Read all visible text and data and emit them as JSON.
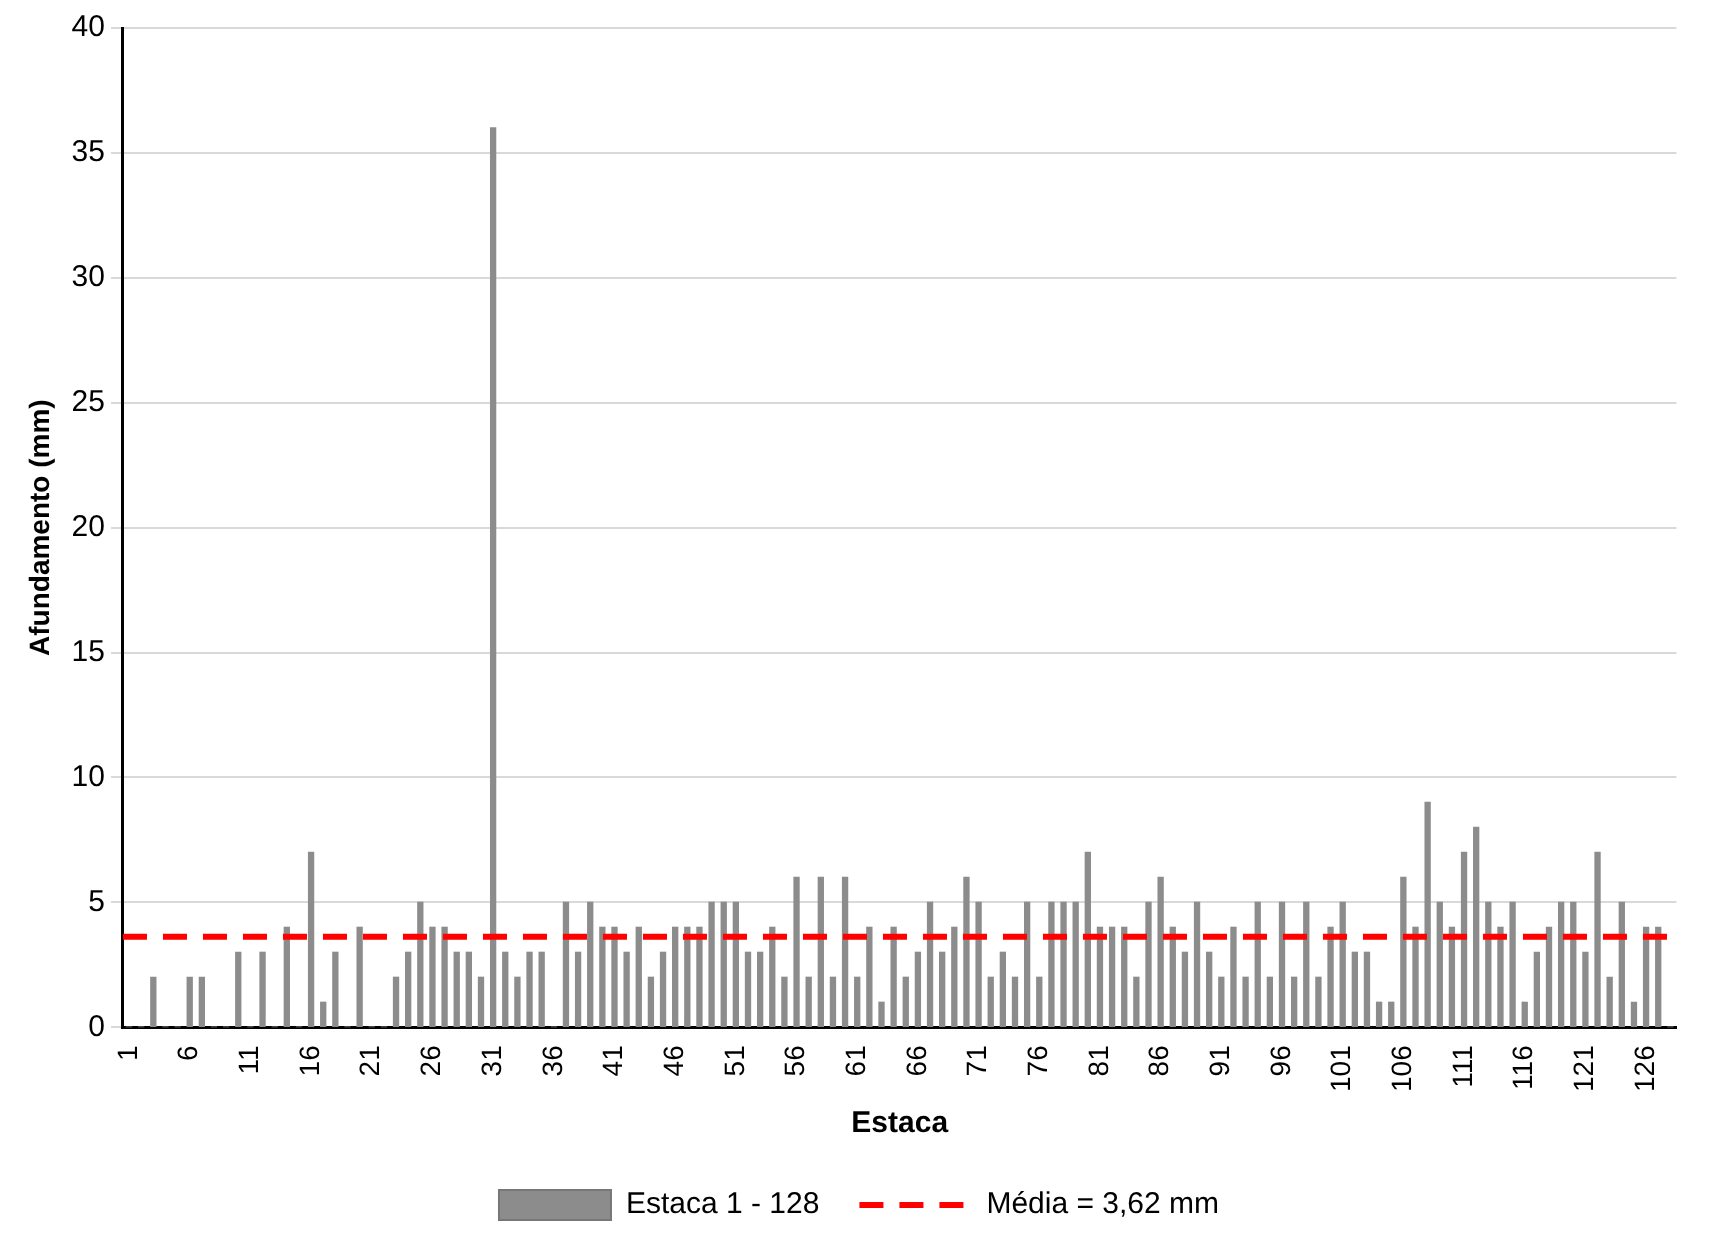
{
  "chart_data": {
    "type": "bar",
    "xlabel": "Estaca",
    "ylabel": "Afundamento (mm)",
    "categories": [
      "1",
      null,
      null,
      null,
      null,
      "6",
      null,
      null,
      null,
      null,
      "11",
      null,
      null,
      null,
      null,
      "16",
      null,
      null,
      null,
      null,
      "21",
      null,
      null,
      null,
      null,
      "26",
      null,
      null,
      null,
      null,
      "31",
      null,
      null,
      null,
      null,
      "36",
      null,
      null,
      null,
      null,
      "41",
      null,
      null,
      null,
      null,
      "46",
      null,
      null,
      null,
      null,
      "51",
      null,
      null,
      null,
      null,
      "56",
      null,
      null,
      null,
      null,
      "61",
      null,
      null,
      null,
      null,
      "66",
      null,
      null,
      null,
      null,
      "71",
      null,
      null,
      null,
      null,
      "76",
      null,
      null,
      null,
      null,
      "81",
      null,
      null,
      null,
      null,
      "86",
      null,
      null,
      null,
      null,
      "91",
      null,
      null,
      null,
      null,
      "96",
      null,
      null,
      null,
      null,
      "101",
      null,
      null,
      null,
      null,
      "106",
      null,
      null,
      null,
      null,
      "111",
      null,
      null,
      null,
      null,
      "116",
      null,
      null,
      null,
      null,
      "121",
      null,
      null,
      null,
      null,
      "126",
      null,
      null
    ],
    "series": [
      {
        "name": "Estaca 1 - 128",
        "color": "#8c8c8c",
        "values": [
          0,
          0,
          2,
          0,
          0,
          2,
          2,
          0,
          0,
          3,
          0,
          3,
          0,
          4,
          0,
          7,
          1,
          3,
          0,
          4,
          0,
          0,
          2,
          3,
          5,
          4,
          4,
          3,
          3,
          2,
          36,
          3,
          2,
          3,
          3,
          0,
          5,
          3,
          5,
          4,
          4,
          3,
          4,
          2,
          3,
          4,
          4,
          4,
          5,
          5,
          5,
          3,
          3,
          4,
          2,
          6,
          2,
          6,
          2,
          6,
          2,
          4,
          1,
          4,
          2,
          3,
          5,
          3,
          4,
          6,
          5,
          2,
          3,
          2,
          5,
          2,
          5,
          5,
          5,
          7,
          4,
          4,
          4,
          2,
          5,
          6,
          4,
          3,
          5,
          3,
          2,
          4,
          2,
          5,
          2,
          5,
          2,
          5,
          2,
          4,
          5,
          3,
          3,
          1,
          1,
          6,
          4,
          9,
          5,
          4,
          7,
          8,
          5,
          4,
          5,
          1,
          3,
          4,
          5,
          5,
          3,
          7,
          2,
          5,
          1,
          4,
          4,
          0
        ]
      }
    ],
    "ref_lines": [
      {
        "axis": "y",
        "value": 3.62,
        "label": "Média = 3,62 mm",
        "color": "#ff0000",
        "line_style": "dashed"
      }
    ],
    "ylim": [
      0,
      40
    ],
    "yticks": [
      0,
      5,
      10,
      15,
      20,
      25,
      30,
      35,
      40
    ],
    "grid": "y",
    "legend": "bottom"
  }
}
